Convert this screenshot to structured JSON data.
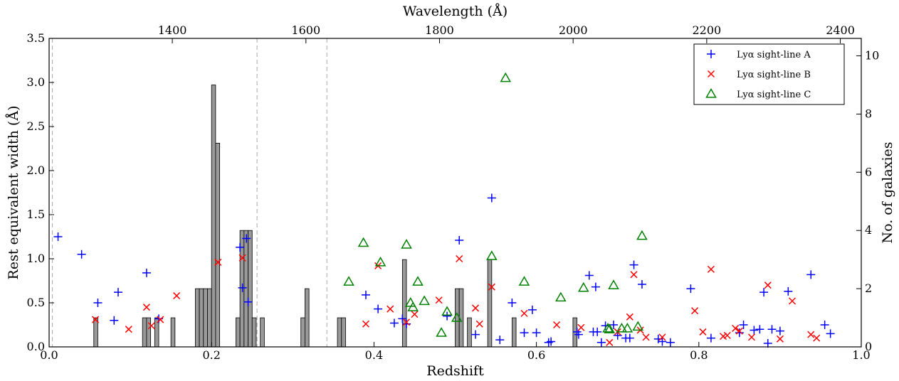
{
  "chart_data": {
    "type": "scatter",
    "xlabel": "Redshift",
    "ylabel": "Rest equivalent width (Å)",
    "y2label": "No. of galaxies",
    "top_xlabel": "Wavelength (Å)",
    "xlim": [
      0.0,
      1.0
    ],
    "ylim": [
      0.0,
      3.5
    ],
    "y2lim": [
      0,
      10.6
    ],
    "xticks": [
      0.0,
      0.2,
      0.4,
      0.6,
      0.8,
      1.0
    ],
    "xtick_labels": [
      "0.0",
      "0.2",
      "0.4",
      "0.6",
      "0.8",
      "1.0"
    ],
    "yticks": [
      0.0,
      0.5,
      1.0,
      1.5,
      2.0,
      2.5,
      3.0,
      3.5
    ],
    "ytick_labels": [
      "0.0",
      "0.5",
      "1.0",
      "1.5",
      "2.0",
      "2.5",
      "3.0",
      "3.5"
    ],
    "y2ticks": [
      0,
      2,
      4,
      6,
      8,
      10
    ],
    "y2tick_labels": [
      "0",
      "2",
      "4",
      "6",
      "8",
      "10"
    ],
    "top_ticks": [
      {
        "label": "1400",
        "z": 0.1517
      },
      {
        "label": "1600",
        "z": 0.3162
      },
      {
        "label": "1800",
        "z": 0.4807
      },
      {
        "label": "2000",
        "z": 0.6452
      },
      {
        "label": "2200",
        "z": 0.8097
      },
      {
        "label": "2400",
        "z": 0.9742
      }
    ],
    "vlines": [
      0.004,
      0.256,
      0.342
    ],
    "legend_position": "top-right",
    "colors": {
      "A": "#0000ff",
      "B": "#ff0000",
      "C": "#008000",
      "hist_fill": "#999999"
    },
    "histogram": {
      "bin_width": 0.005,
      "counts": [
        [
          0.0575,
          1
        ],
        [
          0.1175,
          1
        ],
        [
          0.1225,
          1
        ],
        [
          0.1325,
          1
        ],
        [
          0.1525,
          1
        ],
        [
          0.1825,
          2
        ],
        [
          0.1875,
          2
        ],
        [
          0.1925,
          2
        ],
        [
          0.1975,
          2
        ],
        [
          0.2025,
          9
        ],
        [
          0.2075,
          7
        ],
        [
          0.2325,
          1
        ],
        [
          0.2375,
          4
        ],
        [
          0.2425,
          4
        ],
        [
          0.2475,
          4
        ],
        [
          0.2525,
          1
        ],
        [
          0.2625,
          1
        ],
        [
          0.3125,
          1
        ],
        [
          0.3175,
          2
        ],
        [
          0.3575,
          1
        ],
        [
          0.3625,
          1
        ],
        [
          0.4375,
          3
        ],
        [
          0.5025,
          2
        ],
        [
          0.5075,
          2
        ],
        [
          0.5175,
          1
        ],
        [
          0.5425,
          3
        ],
        [
          0.5725,
          1
        ],
        [
          0.6475,
          1
        ]
      ]
    },
    "series": [
      {
        "name": "Lyα sight-line A",
        "marker": "plus",
        "points": [
          [
            0.011,
            1.25
          ],
          [
            0.04,
            1.05
          ],
          [
            0.06,
            0.5
          ],
          [
            0.08,
            0.3
          ],
          [
            0.085,
            0.62
          ],
          [
            0.12,
            0.84
          ],
          [
            0.135,
            0.32
          ],
          [
            0.235,
            1.13
          ],
          [
            0.238,
            0.67
          ],
          [
            0.243,
            1.23
          ],
          [
            0.245,
            0.51
          ],
          [
            0.39,
            0.59
          ],
          [
            0.405,
            0.43
          ],
          [
            0.425,
            0.27
          ],
          [
            0.435,
            0.32
          ],
          [
            0.44,
            0.26
          ],
          [
            0.49,
            0.35
          ],
          [
            0.505,
            1.21
          ],
          [
            0.525,
            0.14
          ],
          [
            0.545,
            1.69
          ],
          [
            0.555,
            0.08
          ],
          [
            0.57,
            0.5
          ],
          [
            0.585,
            0.16
          ],
          [
            0.595,
            0.42
          ],
          [
            0.6,
            0.16
          ],
          [
            0.615,
            0.05
          ],
          [
            0.618,
            0.06
          ],
          [
            0.65,
            0.17
          ],
          [
            0.652,
            0.14
          ],
          [
            0.665,
            0.81
          ],
          [
            0.67,
            0.17
          ],
          [
            0.673,
            0.68
          ],
          [
            0.675,
            0.17
          ],
          [
            0.68,
            0.05
          ],
          [
            0.685,
            0.24
          ],
          [
            0.695,
            0.25
          ],
          [
            0.7,
            0.13
          ],
          [
            0.71,
            0.1
          ],
          [
            0.715,
            0.1
          ],
          [
            0.72,
            0.93
          ],
          [
            0.73,
            0.71
          ],
          [
            0.75,
            0.09
          ],
          [
            0.755,
            0.06
          ],
          [
            0.765,
            0.05
          ],
          [
            0.79,
            0.66
          ],
          [
            0.815,
            0.1
          ],
          [
            0.85,
            0.16
          ],
          [
            0.855,
            0.25
          ],
          [
            0.868,
            0.19
          ],
          [
            0.875,
            0.2
          ],
          [
            0.88,
            0.62
          ],
          [
            0.885,
            0.04
          ],
          [
            0.89,
            0.2
          ],
          [
            0.9,
            0.18
          ],
          [
            0.91,
            0.63
          ],
          [
            0.938,
            0.82
          ],
          [
            0.955,
            0.25
          ],
          [
            0.962,
            0.15
          ]
        ]
      },
      {
        "name": "Lyα sight-line B",
        "marker": "x",
        "points": [
          [
            0.057,
            0.31
          ],
          [
            0.098,
            0.2
          ],
          [
            0.12,
            0.45
          ],
          [
            0.126,
            0.24
          ],
          [
            0.137,
            0.31
          ],
          [
            0.157,
            0.58
          ],
          [
            0.208,
            0.96
          ],
          [
            0.238,
            1.01
          ],
          [
            0.39,
            0.26
          ],
          [
            0.405,
            0.92
          ],
          [
            0.42,
            0.43
          ],
          [
            0.44,
            0.28
          ],
          [
            0.45,
            0.37
          ],
          [
            0.48,
            0.53
          ],
          [
            0.505,
            1.0
          ],
          [
            0.525,
            0.44
          ],
          [
            0.53,
            0.26
          ],
          [
            0.545,
            0.68
          ],
          [
            0.585,
            0.38
          ],
          [
            0.625,
            0.25
          ],
          [
            0.655,
            0.22
          ],
          [
            0.69,
            0.05
          ],
          [
            0.7,
            0.17
          ],
          [
            0.715,
            0.34
          ],
          [
            0.72,
            0.82
          ],
          [
            0.728,
            0.19
          ],
          [
            0.735,
            0.11
          ],
          [
            0.755,
            0.11
          ],
          [
            0.795,
            0.41
          ],
          [
            0.805,
            0.17
          ],
          [
            0.815,
            0.88
          ],
          [
            0.83,
            0.12
          ],
          [
            0.835,
            0.13
          ],
          [
            0.845,
            0.21
          ],
          [
            0.85,
            0.18
          ],
          [
            0.865,
            0.11
          ],
          [
            0.885,
            0.7
          ],
          [
            0.9,
            0.09
          ],
          [
            0.915,
            0.52
          ],
          [
            0.938,
            0.14
          ],
          [
            0.945,
            0.1
          ]
        ]
      },
      {
        "name": "Lyα sight-line C",
        "marker": "triangle",
        "points": [
          [
            0.369,
            0.74
          ],
          [
            0.387,
            1.18
          ],
          [
            0.408,
            0.96
          ],
          [
            0.44,
            1.16
          ],
          [
            0.445,
            0.5
          ],
          [
            0.448,
            0.45
          ],
          [
            0.454,
            0.74
          ],
          [
            0.462,
            0.52
          ],
          [
            0.483,
            0.16
          ],
          [
            0.49,
            0.4
          ],
          [
            0.502,
            0.33
          ],
          [
            0.545,
            1.03
          ],
          [
            0.562,
            3.05
          ],
          [
            0.585,
            0.74
          ],
          [
            0.63,
            0.56
          ],
          [
            0.658,
            0.67
          ],
          [
            0.688,
            0.21
          ],
          [
            0.69,
            0.2
          ],
          [
            0.695,
            0.7
          ],
          [
            0.705,
            0.21
          ],
          [
            0.712,
            0.21
          ],
          [
            0.725,
            0.23
          ],
          [
            0.73,
            1.26
          ]
        ]
      }
    ]
  }
}
